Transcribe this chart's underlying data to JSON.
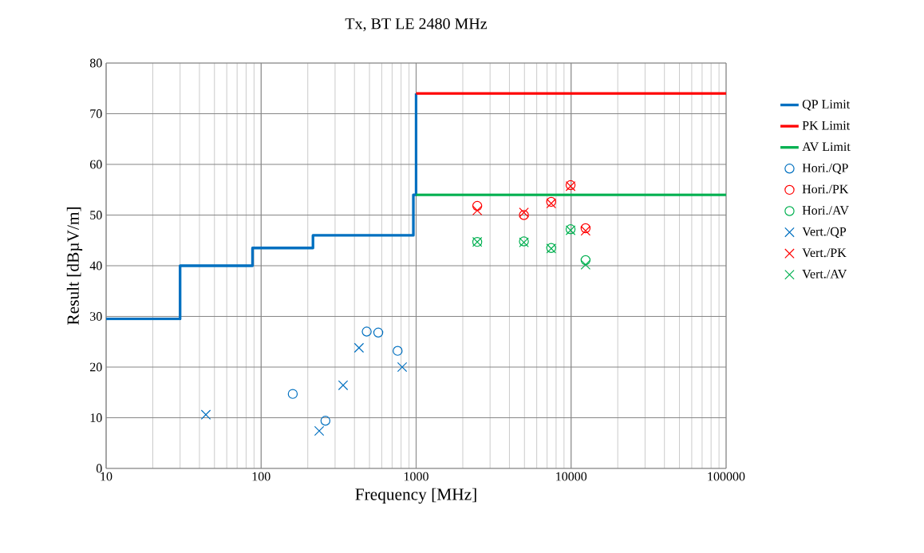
{
  "chart_data": {
    "type": "scatter",
    "title": "Tx, BT LE 2480 MHz",
    "xlabel": "Frequency [MHz]",
    "ylabel": "Result [dBµV/m]",
    "log": "x",
    "grid": true,
    "legend": "right",
    "xlim": [
      10,
      100000
    ],
    "xticks": [
      10,
      100,
      1000,
      10000,
      100000
    ],
    "ylim": [
      0,
      80
    ],
    "yticks": [
      0,
      10,
      20,
      30,
      40,
      50,
      60,
      70,
      80
    ],
    "series": [
      {
        "name": "QP Limit",
        "type": "line",
        "marker": "none",
        "color": "#0070c0",
        "x": [
          10,
          30,
          30,
          88,
          88,
          216,
          216,
          960,
          960,
          1000,
          1000
        ],
        "values": [
          29.5,
          29.5,
          40,
          40,
          43.5,
          43.5,
          46,
          46,
          54,
          54,
          74
        ]
      },
      {
        "name": "PK Limit",
        "type": "line",
        "marker": "none",
        "color": "#ff0000",
        "x": [
          1000,
          100000
        ],
        "values": [
          74,
          74
        ]
      },
      {
        "name": "AV Limit",
        "type": "line",
        "marker": "none",
        "color": "#00b050",
        "x": [
          1000,
          100000
        ],
        "values": [
          54,
          54
        ]
      },
      {
        "name": "Hori./QP",
        "marker": "circle",
        "color": "#0070c0",
        "x": [
          160,
          260,
          480,
          570,
          760
        ],
        "values": [
          14.7,
          9.4,
          27.0,
          26.8,
          23.2
        ]
      },
      {
        "name": "Hori./PK",
        "marker": "circle",
        "color": "#ff0000",
        "x": [
          2480,
          4960,
          7440,
          9920,
          12400
        ],
        "values": [
          51.8,
          50.0,
          52.6,
          55.9,
          47.4
        ]
      },
      {
        "name": "Hori./AV",
        "marker": "circle",
        "color": "#00b050",
        "x": [
          2480,
          4960,
          7440,
          9920,
          12400
        ],
        "values": [
          44.7,
          44.8,
          43.5,
          47.2,
          41.1
        ]
      },
      {
        "name": "Vert./QP",
        "marker": "cross",
        "color": "#0070c0",
        "x": [
          44,
          237,
          338,
          428,
          813
        ],
        "values": [
          10.6,
          7.4,
          16.4,
          23.8,
          20.0
        ]
      },
      {
        "name": "Vert./PK",
        "marker": "cross",
        "color": "#ff0000",
        "x": [
          2480,
          4960,
          7440,
          9920,
          12400
        ],
        "values": [
          50.9,
          50.5,
          52.3,
          55.7,
          46.9
        ]
      },
      {
        "name": "Vert./AV",
        "marker": "cross",
        "color": "#00b050",
        "x": [
          2480,
          4960,
          7440,
          9920,
          12400
        ],
        "values": [
          44.7,
          44.6,
          43.4,
          47.0,
          40.2
        ]
      }
    ]
  }
}
